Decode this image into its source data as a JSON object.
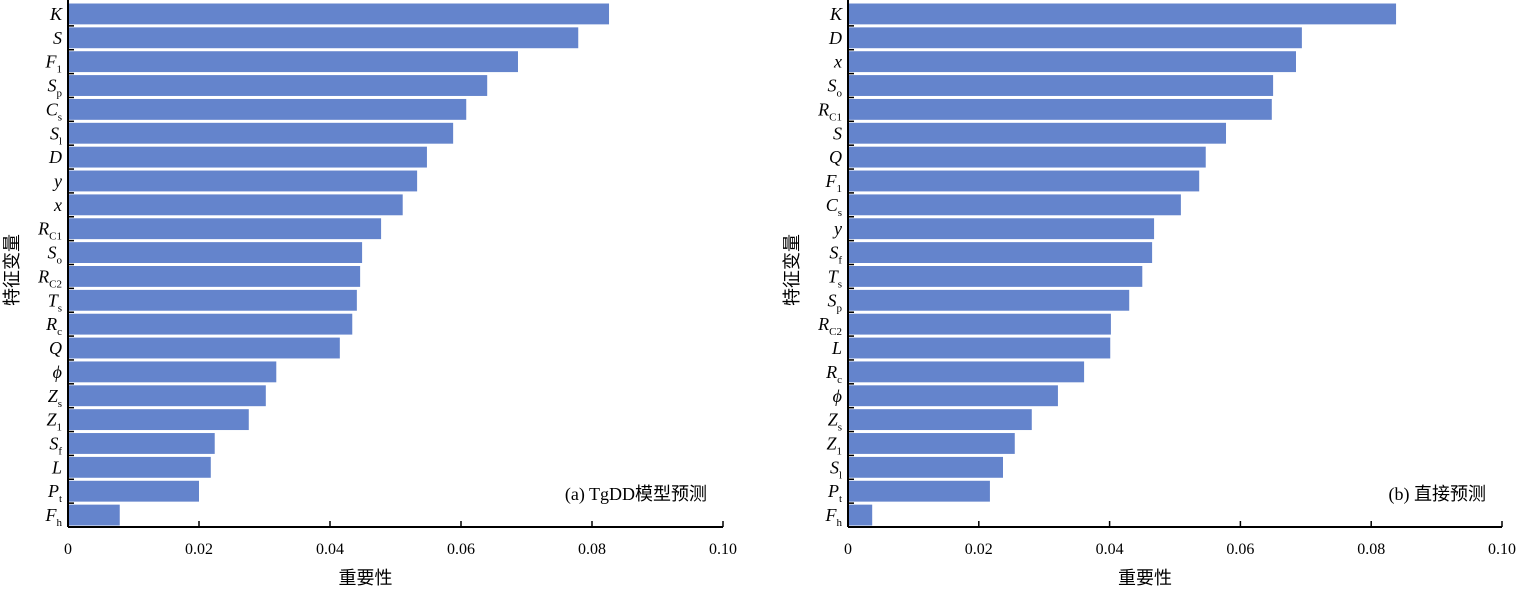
{
  "chart_data": [
    {
      "type": "bar",
      "orientation": "horizontal",
      "annotation": "(a) TgDD模型预测",
      "xlabel": "重要性",
      "ylabel": "特征变量",
      "xlim": [
        0,
        0.1
      ],
      "xticks": [
        "0",
        "0.02",
        "0.04",
        "0.06",
        "0.08",
        "0.10"
      ],
      "categories": [
        {
          "m": "K",
          "s": ""
        },
        {
          "m": "S",
          "s": ""
        },
        {
          "m": "F",
          "s": "1"
        },
        {
          "m": "S",
          "s": "p"
        },
        {
          "m": "C",
          "s": "s"
        },
        {
          "m": "S",
          "s": "l"
        },
        {
          "m": "D",
          "s": ""
        },
        {
          "m": "y",
          "s": ""
        },
        {
          "m": "x",
          "s": ""
        },
        {
          "m": "R",
          "s": "C1"
        },
        {
          "m": "S",
          "s": "o"
        },
        {
          "m": "R",
          "s": "C2"
        },
        {
          "m": "T",
          "s": "s"
        },
        {
          "m": "R",
          "s": "c"
        },
        {
          "m": "Q",
          "s": ""
        },
        {
          "m": "ϕ",
          "s": ""
        },
        {
          "m": "Z",
          "s": "s"
        },
        {
          "m": "Z",
          "s": "1"
        },
        {
          "m": "S",
          "s": "f"
        },
        {
          "m": "L",
          "s": ""
        },
        {
          "m": "P",
          "s": "t"
        },
        {
          "m": "F",
          "s": "h"
        }
      ],
      "values": [
        0.0826,
        0.0779,
        0.0687,
        0.064,
        0.0608,
        0.0588,
        0.0548,
        0.0533,
        0.0511,
        0.0478,
        0.0449,
        0.0446,
        0.0441,
        0.0434,
        0.0415,
        0.0318,
        0.0302,
        0.0276,
        0.0224,
        0.0218,
        0.02,
        0.0079
      ],
      "color": "#6484cc"
    },
    {
      "type": "bar",
      "orientation": "horizontal",
      "annotation": "(b) 直接预测",
      "xlabel": "重要性",
      "ylabel": "特征变量",
      "xlim": [
        0,
        0.1
      ],
      "xticks": [
        "0",
        "0.02",
        "0.04",
        "0.06",
        "0.08",
        "0.10"
      ],
      "categories": [
        {
          "m": "K",
          "s": ""
        },
        {
          "m": "D",
          "s": ""
        },
        {
          "m": "x",
          "s": ""
        },
        {
          "m": "S",
          "s": "o"
        },
        {
          "m": "R",
          "s": "C1"
        },
        {
          "m": "S",
          "s": ""
        },
        {
          "m": "Q",
          "s": ""
        },
        {
          "m": "F",
          "s": "1"
        },
        {
          "m": "C",
          "s": "s"
        },
        {
          "m": "y",
          "s": ""
        },
        {
          "m": "S",
          "s": "f"
        },
        {
          "m": "T",
          "s": "s"
        },
        {
          "m": "S",
          "s": "p"
        },
        {
          "m": "R",
          "s": "C2"
        },
        {
          "m": "L",
          "s": ""
        },
        {
          "m": "R",
          "s": "c"
        },
        {
          "m": "ϕ",
          "s": ""
        },
        {
          "m": "Z",
          "s": "s"
        },
        {
          "m": "Z",
          "s": "1"
        },
        {
          "m": "S",
          "s": "l"
        },
        {
          "m": "P",
          "s": "t"
        },
        {
          "m": "F",
          "s": "h"
        }
      ],
      "values": [
        0.0838,
        0.0694,
        0.0685,
        0.065,
        0.0648,
        0.0578,
        0.0547,
        0.0537,
        0.0509,
        0.0468,
        0.0465,
        0.045,
        0.043,
        0.0402,
        0.0401,
        0.0361,
        0.0321,
        0.0281,
        0.0255,
        0.0237,
        0.0217,
        0.0037
      ],
      "color": "#6484cc"
    }
  ]
}
